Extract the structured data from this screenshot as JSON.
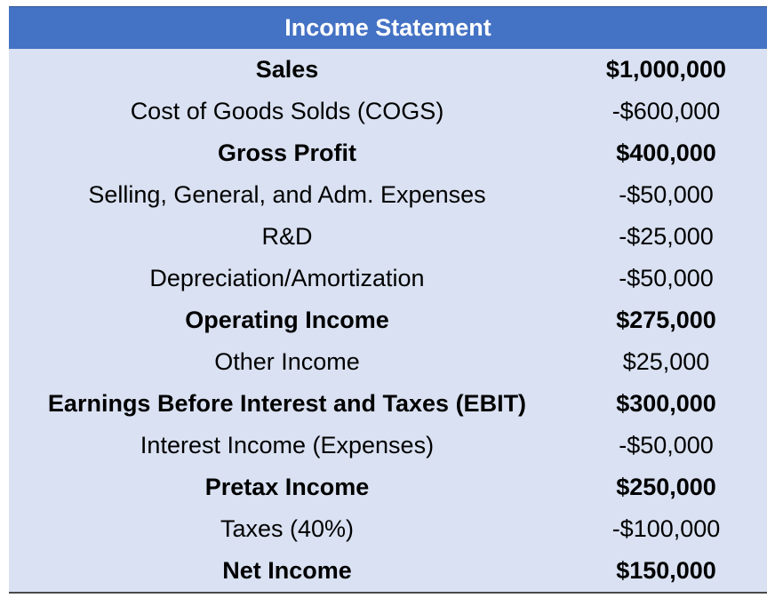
{
  "title": "Income Statement",
  "rows": [
    {
      "label": "Sales",
      "value": "$1,000,000",
      "bold": true
    },
    {
      "label": "Cost of Goods Solds (COGS)",
      "value": "-$600,000",
      "bold": false
    },
    {
      "label": "Gross Profit",
      "value": "$400,000",
      "bold": true
    },
    {
      "label": "Selling, General, and Adm. Expenses",
      "value": "-$50,000",
      "bold": false
    },
    {
      "label": "R&D",
      "value": "-$25,000",
      "bold": false
    },
    {
      "label": "Depreciation/Amortization",
      "value": "-$50,000",
      "bold": false
    },
    {
      "label": "Operating Income",
      "value": "$275,000",
      "bold": true
    },
    {
      "label": "Other Income",
      "value": "$25,000",
      "bold": false
    },
    {
      "label": "Earnings Before Interest and Taxes (EBIT)",
      "value": "$300,000",
      "bold": true
    },
    {
      "label": "Interest Income (Expenses)",
      "value": "-$50,000",
      "bold": false
    },
    {
      "label": "Pretax Income",
      "value": "$250,000",
      "bold": true
    },
    {
      "label": "Taxes (40%)",
      "value": "-$100,000",
      "bold": false
    },
    {
      "label": "Net Income",
      "value": "$150,000",
      "bold": true
    }
  ],
  "colors": {
    "header_bg": "#4472c4",
    "header_text": "#ffffff",
    "body_bg": "#d9e1f2",
    "text": "#000000"
  }
}
